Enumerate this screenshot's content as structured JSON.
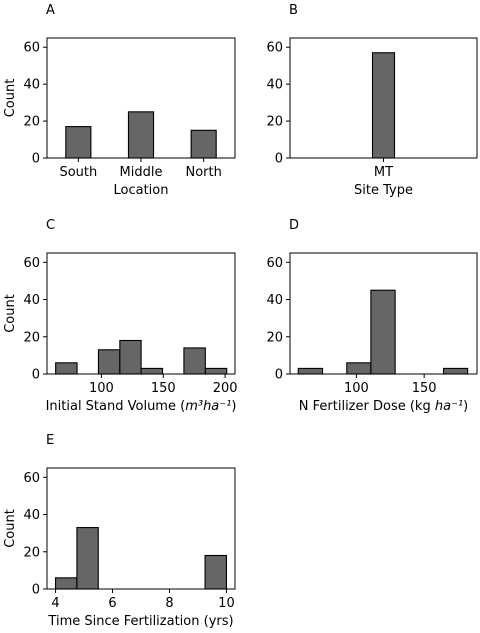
{
  "chart_data": [
    {
      "panel": "A",
      "type": "bar",
      "xlabel": "Location",
      "ylabel": "Count",
      "categories": [
        "South",
        "Middle",
        "North"
      ],
      "values": [
        17,
        25,
        15
      ],
      "ylim": [
        0,
        65
      ],
      "yticks": [
        0,
        20,
        40,
        60
      ],
      "grid": false
    },
    {
      "panel": "B",
      "type": "bar",
      "xlabel": "Site Type",
      "ylabel": "",
      "categories": [
        "MT"
      ],
      "values": [
        57
      ],
      "ylim": [
        0,
        65
      ],
      "yticks": [
        0,
        20,
        40,
        60
      ],
      "grid": false
    },
    {
      "panel": "C",
      "type": "bar",
      "subtype": "histogram",
      "xlabel": "Initial Stand Volume",
      "xlabel_unit": "m³ha⁻¹",
      "ylabel": "Count",
      "bins": [
        [
          63,
          80.3
        ],
        [
          80.3,
          97.6
        ],
        [
          97.6,
          114.9
        ],
        [
          114.9,
          132.1
        ],
        [
          132.1,
          149.4
        ],
        [
          149.4,
          166.7
        ],
        [
          166.7,
          184
        ],
        [
          184,
          201.3
        ]
      ],
      "values": [
        6,
        0,
        13,
        18,
        3,
        0,
        14,
        3
      ],
      "xlim": [
        56,
        208
      ],
      "xticks": [
        100,
        150,
        200
      ],
      "ylim": [
        0,
        65
      ],
      "yticks": [
        0,
        20,
        40,
        60
      ],
      "grid": false
    },
    {
      "panel": "D",
      "type": "bar",
      "subtype": "histogram",
      "xlabel": "N Fertilizer Dose (kg ",
      "xlabel_unit": "ha⁻¹",
      "xlabel_close": ")",
      "ylabel": "",
      "bins": [
        [
          57.1,
          75
        ],
        [
          75,
          92.9
        ],
        [
          92.9,
          110.7
        ],
        [
          110.7,
          128.6
        ],
        [
          128.6,
          146.4
        ],
        [
          146.4,
          164.3
        ],
        [
          164.3,
          182.1
        ]
      ],
      "values": [
        3,
        0,
        6,
        45,
        0,
        0,
        3
      ],
      "xlim": [
        51,
        189
      ],
      "xticks": [
        100,
        150
      ],
      "ylim": [
        0,
        65
      ],
      "yticks": [
        0,
        20,
        40,
        60
      ],
      "grid": false
    },
    {
      "panel": "E",
      "type": "bar",
      "subtype": "histogram",
      "xlabel": "Time Since Fertilization (yrs)",
      "ylabel": "Count",
      "bins": [
        [
          4,
          4.75
        ],
        [
          4.75,
          5.5
        ],
        [
          5.5,
          6.25
        ],
        [
          6.25,
          7
        ],
        [
          7,
          7.75
        ],
        [
          7.75,
          8.5
        ],
        [
          8.5,
          9.25
        ],
        [
          9.25,
          10
        ]
      ],
      "values": [
        6,
        33,
        0,
        0,
        0,
        0,
        0,
        18
      ],
      "xlim": [
        3.7,
        10.3
      ],
      "xticks": [
        4,
        6,
        8,
        10
      ],
      "ylim": [
        0,
        65
      ],
      "yticks": [
        0,
        20,
        40,
        60
      ],
      "grid": false
    }
  ],
  "colors": {
    "bar_fill": "#666666",
    "bar_edge": "#000000"
  }
}
